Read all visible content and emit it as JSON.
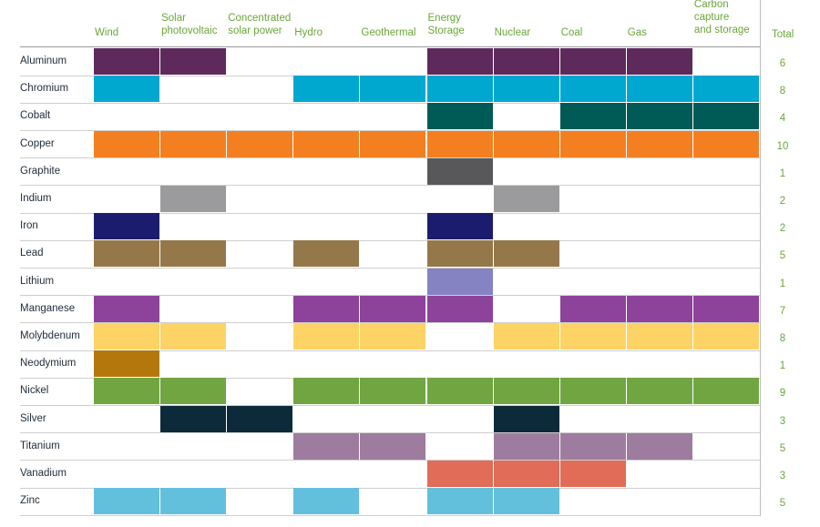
{
  "chart_data": {
    "type": "table",
    "columns": [
      "Wind",
      "Solar photovoltaic",
      "Concentrated solar power",
      "Hydro",
      "Geothermal",
      "Energy Storage",
      "Nuclear",
      "Coal",
      "Gas",
      "Carbon capture and storage"
    ],
    "column_labels": [
      "Wind",
      "Solar\nphotovoltaic",
      "Concentrated\nsolar power",
      "Hydro",
      "Geothermal",
      "Energy\nStorage",
      "Nuclear",
      "Coal",
      "Gas",
      "Carbon\ncapture\nand storage"
    ],
    "total_label": "Total",
    "rows": [
      {
        "name": "Aluminum",
        "color": "#5e2a5c",
        "values": [
          1,
          1,
          0,
          0,
          0,
          1,
          1,
          1,
          1,
          0
        ],
        "total": 6
      },
      {
        "name": "Chromium",
        "color": "#00a8d0",
        "values": [
          1,
          0,
          0,
          1,
          1,
          1,
          1,
          1,
          1,
          1
        ],
        "total": 8
      },
      {
        "name": "Cobalt",
        "color": "#005a55",
        "values": [
          0,
          0,
          0,
          0,
          0,
          1,
          0,
          1,
          1,
          1
        ],
        "total": 4
      },
      {
        "name": "Copper",
        "color": "#f47f20",
        "values": [
          1,
          1,
          1,
          1,
          1,
          1,
          1,
          1,
          1,
          1
        ],
        "total": 10
      },
      {
        "name": "Graphite",
        "color": "#58585a",
        "values": [
          0,
          0,
          0,
          0,
          0,
          1,
          0,
          0,
          0,
          0
        ],
        "total": 1
      },
      {
        "name": "Indium",
        "color": "#9b9b9e",
        "values": [
          0,
          1,
          0,
          0,
          0,
          0,
          1,
          0,
          0,
          0
        ],
        "total": 2
      },
      {
        "name": "Iron",
        "color": "#1c1c6e",
        "values": [
          1,
          0,
          0,
          0,
          0,
          1,
          0,
          0,
          0,
          0
        ],
        "total": 2
      },
      {
        "name": "Lead",
        "color": "#94784a",
        "values": [
          1,
          1,
          0,
          1,
          0,
          1,
          1,
          0,
          0,
          0
        ],
        "total": 5
      },
      {
        "name": "Lithium",
        "color": "#8583c1",
        "values": [
          0,
          0,
          0,
          0,
          0,
          1,
          0,
          0,
          0,
          0
        ],
        "total": 1
      },
      {
        "name": "Manganese",
        "color": "#8c4399",
        "values": [
          1,
          0,
          0,
          1,
          1,
          1,
          0,
          1,
          1,
          1
        ],
        "total": 7
      },
      {
        "name": "Molybdenum",
        "color": "#fdd366",
        "values": [
          1,
          1,
          0,
          1,
          1,
          0,
          1,
          1,
          1,
          1
        ],
        "total": 8
      },
      {
        "name": "Neodymium",
        "color": "#b3770c",
        "values": [
          1,
          0,
          0,
          0,
          0,
          0,
          0,
          0,
          0,
          0
        ],
        "total": 1
      },
      {
        "name": "Nickel",
        "color": "#70a541",
        "values": [
          1,
          1,
          0,
          1,
          1,
          1,
          1,
          1,
          1,
          1
        ],
        "total": 9
      },
      {
        "name": "Silver",
        "color": "#0d2a3a",
        "values": [
          0,
          1,
          1,
          0,
          0,
          0,
          1,
          0,
          0,
          0
        ],
        "total": 3
      },
      {
        "name": "Titanium",
        "color": "#9e7c9f",
        "values": [
          0,
          0,
          0,
          1,
          1,
          0,
          1,
          1,
          1,
          0
        ],
        "total": 5
      },
      {
        "name": "Vanadium",
        "color": "#e16c57",
        "values": [
          0,
          0,
          0,
          0,
          0,
          1,
          1,
          1,
          0,
          0
        ],
        "total": 3
      },
      {
        "name": "Zinc",
        "color": "#63c0dd",
        "values": [
          1,
          1,
          0,
          1,
          0,
          1,
          1,
          0,
          0,
          0
        ],
        "total": 5
      }
    ]
  }
}
